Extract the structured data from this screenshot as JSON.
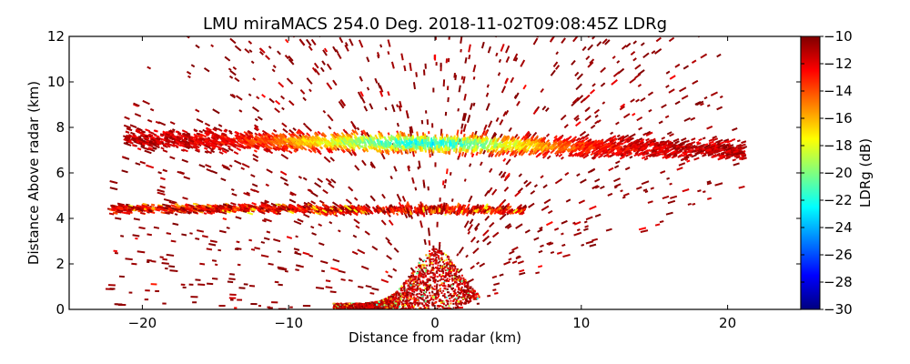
{
  "chart_data": {
    "type": "heatmap",
    "title": "LMU miraMACS 254.0 Deg. 2018-11-02T09:08:45Z  LDRg",
    "xlabel": "Distance from radar (km)",
    "ylabel": "Distance Above radar  (km)",
    "xlim": [
      -25,
      25
    ],
    "ylim": [
      0,
      12
    ],
    "x_ticks": [
      -20,
      -10,
      0,
      10,
      20
    ],
    "x_tick_labels": [
      "−20",
      "−10",
      "0",
      "10",
      "20"
    ],
    "y_ticks": [
      0,
      2,
      4,
      6,
      8,
      10,
      12
    ],
    "y_tick_labels": [
      "0",
      "2",
      "4",
      "6",
      "8",
      "10",
      "12"
    ],
    "grid": false,
    "colorbar": {
      "label": "LDRg (dB)",
      "range": [
        -30,
        -10
      ],
      "colormap": "jet",
      "ticks": [
        -10,
        -12,
        -14,
        -16,
        -18,
        -20,
        -22,
        -24,
        -26,
        -28,
        -30
      ],
      "tick_labels": [
        "−10",
        "−12",
        "−14",
        "−16",
        "−18",
        "−20",
        "−22",
        "−24",
        "−26",
        "−28",
        "−30"
      ],
      "stops": [
        "#00007f",
        "#0000ff",
        "#007fff",
        "#00ffff",
        "#7fff7f",
        "#ffff00",
        "#ff7f00",
        "#ff0000",
        "#7f0000"
      ]
    },
    "features": [
      {
        "name": "upper cloud layer",
        "x_range": [
          -21,
          21
        ],
        "height_range": [
          6.6,
          7.8
        ],
        "ldr_min": -22,
        "ldr_typical": -12
      },
      {
        "name": "lower cloud layer",
        "x_range": [
          -22,
          6
        ],
        "height_range": [
          4.0,
          4.6
        ],
        "ldr_min": -20,
        "ldr_typical": -13
      },
      {
        "name": "near-radar clutter",
        "x_range": [
          -7,
          3
        ],
        "height_range": [
          0,
          2.5
        ],
        "ldr_min": -24,
        "ldr_typical": -11
      },
      {
        "name": "scattered echoes",
        "x_range": [
          -22,
          21
        ],
        "height_range": [
          0,
          12
        ],
        "ldr_typical": -10
      }
    ]
  }
}
